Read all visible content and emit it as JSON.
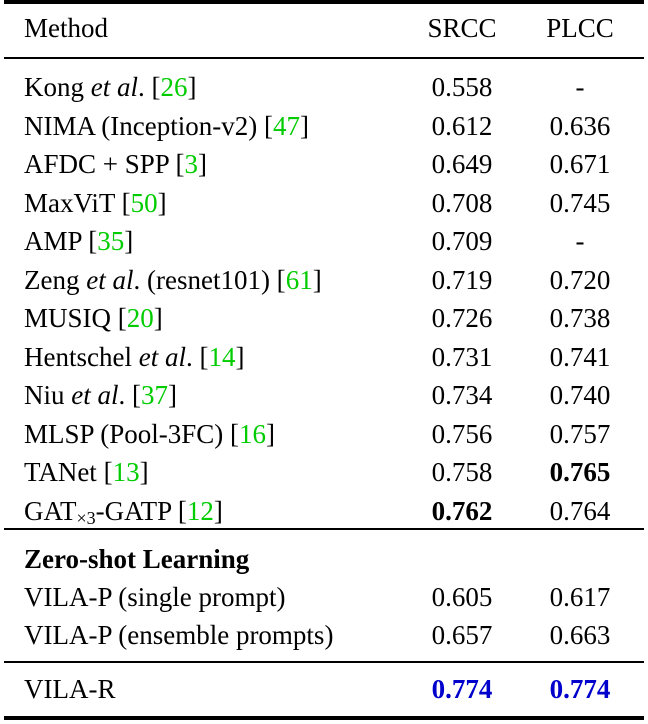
{
  "table": {
    "headers": {
      "method": "Method",
      "srcc": "SRCC",
      "plcc": "PLCC"
    },
    "supervised_rows": [
      {
        "name": "Kong ",
        "italic": "et al",
        "after": ". [",
        "cite": "26",
        "close": "]",
        "srcc": "0.558",
        "plcc": "-"
      },
      {
        "name": "NIMA (Inception-v2) [",
        "cite": "47",
        "close": "]",
        "srcc": "0.612",
        "plcc": "0.636"
      },
      {
        "name": "AFDC + SPP [",
        "cite": "3",
        "close": "]",
        "srcc": "0.649",
        "plcc": "0.671"
      },
      {
        "name": "MaxViT [",
        "cite": "50",
        "close": "]",
        "srcc": "0.708",
        "plcc": "0.745"
      },
      {
        "name": "AMP [",
        "cite": "35",
        "close": "]",
        "srcc": "0.709",
        "plcc": "-"
      },
      {
        "name": "Zeng ",
        "italic": "et al",
        "after": ". (resnet101) [",
        "cite": "61",
        "close": "]",
        "srcc": "0.719",
        "plcc": "0.720"
      },
      {
        "name": "MUSIQ [",
        "cite": "20",
        "close": "]",
        "srcc": "0.726",
        "plcc": "0.738"
      },
      {
        "name": "Hentschel ",
        "italic": "et al",
        "after": ". [",
        "cite": "14",
        "close": "]",
        "srcc": "0.731",
        "plcc": "0.741"
      },
      {
        "name": "Niu ",
        "italic": "et al",
        "after": ". [",
        "cite": "37",
        "close": "]",
        "srcc": "0.734",
        "plcc": "0.740"
      },
      {
        "name": "MLSP (Pool-3FC) [",
        "cite": "16",
        "close": "]",
        "srcc": "0.756",
        "plcc": "0.757"
      },
      {
        "name": "TANet [",
        "cite": "13",
        "close": "]",
        "srcc": "0.758",
        "plcc": "0.765",
        "plcc_bold": true
      },
      {
        "name": "GAT",
        "sub": "×3",
        "after": "-GATP [",
        "cite": "12",
        "close": "]",
        "srcc": "0.762",
        "plcc": "0.764",
        "srcc_bold": true
      }
    ],
    "zero_shot_header": "Zero-shot Learning",
    "zero_shot_rows": [
      {
        "name": "VILA-P (single prompt)",
        "srcc": "0.605",
        "plcc": "0.617"
      },
      {
        "name": "VILA-P (ensemble prompts)",
        "srcc": "0.657",
        "plcc": "0.663"
      }
    ],
    "final_row": {
      "name": "VILA-R",
      "srcc": "0.774",
      "plcc": "0.774"
    },
    "colors": {
      "citation": "#00cc00",
      "highlight": "#0000cc"
    }
  }
}
